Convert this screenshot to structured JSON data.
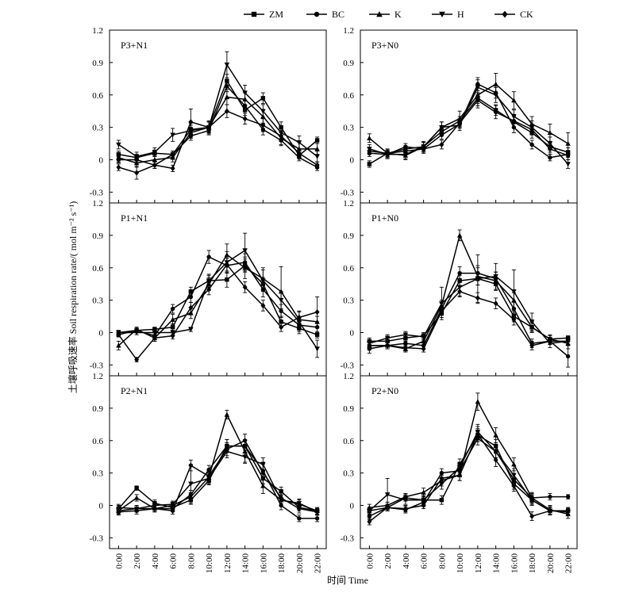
{
  "figure": {
    "ylabel": "土壤呼吸速率 Soil respiration rate/( mol m⁻² s⁻¹)",
    "xlabel": "时间 Time"
  },
  "chart_data": {
    "type": "line",
    "legend_position": "top",
    "legend": [
      {
        "name": "ZM",
        "marker": "square"
      },
      {
        "name": "BC",
        "marker": "circle"
      },
      {
        "name": "K",
        "marker": "triangle"
      },
      {
        "name": "H",
        "marker": "triangle-down"
      },
      {
        "name": "CK",
        "marker": "diamond"
      }
    ],
    "x": [
      "0:00",
      "2:00",
      "4:00",
      "6:00",
      "8:00",
      "10:00",
      "12:00",
      "14:00",
      "16:00",
      "18:00",
      "20:00",
      "22:00"
    ],
    "ylim": [
      -0.4,
      1.2
    ],
    "yticks": [
      "1.2",
      "0.9",
      "0.6",
      "0.3",
      "0",
      "-0.3"
    ],
    "yticks_values": [
      1.2,
      0.9,
      0.6,
      0.3,
      0,
      -0.3
    ],
    "color": "#000000",
    "panels": [
      {
        "label": "P3+N1",
        "series": [
          {
            "name": "ZM",
            "values": [
              0.05,
              0.02,
              0.06,
              0.05,
              0.28,
              0.3,
              0.73,
              0.46,
              0.57,
              0.3,
              0.04,
              0.18
            ],
            "err": [
              0.03,
              0.03,
              0.03,
              0.03,
              0.04,
              0.05,
              0.06,
              0.05,
              0.05,
              0.05,
              0.03,
              0.03
            ]
          },
          {
            "name": "BC",
            "values": [
              0.0,
              0.0,
              -0.05,
              0.05,
              0.22,
              0.27,
              0.68,
              0.5,
              0.28,
              0.18,
              0.02,
              -0.07
            ],
            "err": [
              0.03,
              0.03,
              0.03,
              0.03,
              0.04,
              0.04,
              0.05,
              0.05,
              0.05,
              0.05,
              0.03,
              0.03
            ]
          },
          {
            "name": "K",
            "values": [
              0.02,
              -0.03,
              0.0,
              0.02,
              0.25,
              0.3,
              0.58,
              0.56,
              0.4,
              0.2,
              0.1,
              0.1
            ],
            "err": [
              0.04,
              0.04,
              0.04,
              0.04,
              0.05,
              0.05,
              0.07,
              0.06,
              0.06,
              0.06,
              0.06,
              0.05
            ]
          },
          {
            "name": "H",
            "values": [
              0.14,
              0.03,
              0.07,
              0.23,
              0.27,
              0.3,
              0.88,
              0.62,
              0.45,
              0.25,
              0.16,
              0.03
            ],
            "err": [
              0.04,
              0.04,
              0.04,
              0.06,
              0.07,
              0.06,
              0.12,
              0.07,
              0.06,
              0.06,
              0.06,
              0.05
            ]
          },
          {
            "name": "CK",
            "values": [
              -0.07,
              -0.12,
              -0.05,
              -0.08,
              0.35,
              0.3,
              0.45,
              0.38,
              0.32,
              0.22,
              0.06,
              -0.05
            ],
            "err": [
              0.03,
              0.06,
              0.03,
              0.03,
              0.12,
              0.05,
              0.06,
              0.05,
              0.06,
              0.05,
              0.04,
              0.03
            ]
          }
        ]
      },
      {
        "label": "P3+N0",
        "series": [
          {
            "name": "ZM",
            "values": [
              -0.04,
              0.06,
              0.1,
              0.12,
              0.26,
              0.36,
              0.57,
              0.46,
              0.35,
              0.25,
              0.12,
              0.07
            ],
            "err": [
              0.03,
              0.03,
              0.03,
              0.04,
              0.04,
              0.04,
              0.05,
              0.05,
              0.05,
              0.05,
              0.05,
              0.04
            ]
          },
          {
            "name": "BC",
            "values": [
              0.06,
              0.05,
              0.12,
              0.1,
              0.23,
              0.33,
              0.7,
              0.62,
              0.3,
              0.14,
              0.02,
              0.05
            ],
            "err": [
              0.03,
              0.03,
              0.03,
              0.04,
              0.04,
              0.04,
              0.06,
              0.05,
              0.05,
              0.04,
              0.03,
              0.03
            ]
          },
          {
            "name": "K",
            "values": [
              0.2,
              0.06,
              0.04,
              0.12,
              0.3,
              0.38,
              0.6,
              0.7,
              0.55,
              0.33,
              0.25,
              0.15
            ],
            "err": [
              0.04,
              0.04,
              0.04,
              0.05,
              0.05,
              0.07,
              0.1,
              0.1,
              0.08,
              0.07,
              0.08,
              0.1
            ]
          },
          {
            "name": "H",
            "values": [
              0.1,
              0.05,
              0.05,
              0.12,
              0.3,
              0.32,
              0.67,
              0.6,
              0.4,
              0.3,
              0.15,
              -0.04
            ],
            "err": [
              0.04,
              0.04,
              0.04,
              0.04,
              0.05,
              0.05,
              0.07,
              0.07,
              0.06,
              0.06,
              0.06,
              0.04
            ]
          },
          {
            "name": "CK",
            "values": [
              0.08,
              0.06,
              0.08,
              0.1,
              0.14,
              0.34,
              0.55,
              0.44,
              0.36,
              0.28,
              0.1,
              0.04
            ],
            "err": [
              0.03,
              0.03,
              0.03,
              0.03,
              0.04,
              0.04,
              0.07,
              0.06,
              0.06,
              0.05,
              0.05,
              0.04
            ]
          }
        ]
      },
      {
        "label": "P1+N1",
        "series": [
          {
            "name": "ZM",
            "values": [
              -0.02,
              0.02,
              0.03,
              0.05,
              0.38,
              0.48,
              0.49,
              0.62,
              0.45,
              0.1,
              0.04,
              -0.02
            ],
            "err": [
              0.02,
              0.02,
              0.02,
              0.03,
              0.04,
              0.05,
              0.07,
              0.06,
              0.06,
              0.05,
              0.05,
              0.03
            ]
          },
          {
            "name": "BC",
            "values": [
              0.0,
              0.02,
              -0.03,
              0.22,
              0.33,
              0.7,
              0.62,
              0.65,
              0.4,
              0.2,
              0.07,
              0.05
            ],
            "err": [
              0.02,
              0.02,
              0.03,
              0.04,
              0.05,
              0.06,
              0.07,
              0.08,
              0.07,
              0.06,
              0.06,
              0.05
            ]
          },
          {
            "name": "K",
            "values": [
              -0.12,
              0.03,
              -0.05,
              0.12,
              0.18,
              0.45,
              0.72,
              0.6,
              0.5,
              0.38,
              0.12,
              0.1
            ],
            "err": [
              0.04,
              0.02,
              0.03,
              0.05,
              0.05,
              0.06,
              0.1,
              0.1,
              0.1,
              0.23,
              0.08,
              0.05
            ]
          },
          {
            "name": "H",
            "values": [
              0.0,
              0.0,
              0.0,
              0.0,
              0.03,
              0.48,
              0.65,
              0.76,
              0.48,
              0.3,
              0.1,
              -0.15
            ],
            "err": [
              0.02,
              0.02,
              0.02,
              0.02,
              0.02,
              0.06,
              0.1,
              0.16,
              0.1,
              0.08,
              0.05,
              0.08
            ]
          },
          {
            "name": "CK",
            "values": [
              -0.02,
              -0.25,
              -0.05,
              -0.03,
              0.23,
              0.4,
              0.63,
              0.42,
              0.25,
              0.05,
              0.14,
              0.19
            ],
            "err": [
              0.02,
              0.02,
              0.03,
              0.03,
              0.05,
              0.05,
              0.06,
              0.05,
              0.05,
              0.04,
              0.05,
              0.14
            ]
          }
        ]
      },
      {
        "label": "P1+N0",
        "series": [
          {
            "name": "ZM",
            "values": [
              -0.08,
              -0.08,
              -0.05,
              -0.03,
              0.18,
              0.48,
              0.5,
              0.45,
              0.15,
              0.05,
              -0.06,
              -0.05
            ],
            "err": [
              0.03,
              0.03,
              0.03,
              0.03,
              0.04,
              0.05,
              0.06,
              0.06,
              0.05,
              0.04,
              0.03,
              0.02
            ]
          },
          {
            "name": "BC",
            "values": [
              -0.15,
              -0.12,
              -0.1,
              -0.12,
              0.22,
              0.55,
              0.55,
              0.5,
              0.22,
              -0.1,
              -0.08,
              -0.22
            ],
            "err": [
              0.04,
              0.03,
              0.03,
              0.03,
              0.05,
              0.06,
              0.07,
              0.06,
              0.06,
              0.04,
              0.03,
              0.1
            ]
          },
          {
            "name": "K",
            "values": [
              -0.12,
              -0.12,
              -0.15,
              -0.08,
              0.25,
              0.9,
              0.52,
              0.48,
              0.3,
              0.05,
              -0.06,
              -0.1
            ],
            "err": [
              0.04,
              0.03,
              0.03,
              0.04,
              0.05,
              0.05,
              0.08,
              0.08,
              0.07,
              0.05,
              0.04,
              0.05
            ]
          },
          {
            "name": "H",
            "values": [
              -0.1,
              -0.05,
              -0.02,
              -0.04,
              0.27,
              0.42,
              0.5,
              0.52,
              0.38,
              0.1,
              -0.1,
              -0.08
            ],
            "err": [
              0.03,
              0.03,
              0.03,
              0.03,
              0.15,
              0.08,
              0.22,
              0.12,
              0.2,
              0.08,
              0.04,
              0.04
            ]
          },
          {
            "name": "CK",
            "values": [
              -0.12,
              -0.12,
              -0.14,
              -0.15,
              0.2,
              0.38,
              0.32,
              0.27,
              0.12,
              -0.12,
              -0.08,
              -0.08
            ],
            "err": [
              0.03,
              0.03,
              0.03,
              0.03,
              0.04,
              0.05,
              0.05,
              0.05,
              0.05,
              0.04,
              0.03,
              0.03
            ]
          }
        ]
      },
      {
        "label": "P2+N1",
        "series": [
          {
            "name": "ZM",
            "values": [
              -0.03,
              0.16,
              0.02,
              -0.02,
              0.05,
              0.23,
              0.55,
              0.55,
              0.25,
              0.13,
              -0.02,
              -0.05
            ],
            "err": [
              0.03,
              0.02,
              0.03,
              0.03,
              0.04,
              0.04,
              0.06,
              0.06,
              0.05,
              0.04,
              0.03,
              0.03
            ]
          },
          {
            "name": "BC",
            "values": [
              -0.06,
              -0.05,
              -0.03,
              -0.03,
              0.1,
              0.33,
              0.55,
              0.55,
              0.32,
              0.0,
              -0.12,
              -0.12
            ],
            "err": [
              0.03,
              0.03,
              0.03,
              0.03,
              0.04,
              0.04,
              0.06,
              0.06,
              0.06,
              0.04,
              0.03,
              0.03
            ]
          },
          {
            "name": "K",
            "values": [
              -0.05,
              0.07,
              -0.03,
              0.0,
              0.08,
              0.26,
              0.84,
              0.5,
              0.18,
              0.05,
              0.01,
              -0.05
            ],
            "err": [
              0.03,
              0.03,
              0.03,
              0.03,
              0.04,
              0.05,
              0.04,
              0.1,
              0.07,
              0.05,
              0.04,
              0.03
            ]
          },
          {
            "name": "H",
            "values": [
              -0.05,
              -0.03,
              0.0,
              0.01,
              0.2,
              0.25,
              0.5,
              0.45,
              0.38,
              0.05,
              0.02,
              -0.06
            ],
            "err": [
              0.03,
              0.03,
              0.03,
              0.03,
              0.18,
              0.05,
              0.06,
              0.06,
              0.06,
              0.05,
              0.04,
              0.03
            ]
          },
          {
            "name": "CK",
            "values": [
              -0.02,
              -0.03,
              -0.03,
              -0.05,
              0.37,
              0.27,
              0.52,
              0.6,
              0.3,
              0.07,
              -0.03,
              -0.06
            ],
            "err": [
              0.03,
              0.03,
              0.03,
              0.03,
              0.05,
              0.05,
              0.06,
              0.06,
              0.1,
              0.05,
              0.04,
              0.03
            ]
          }
        ]
      },
      {
        "label": "P2+N0",
        "series": [
          {
            "name": "ZM",
            "values": [
              -0.05,
              -0.02,
              0.07,
              0.05,
              0.05,
              0.38,
              0.65,
              0.55,
              0.2,
              0.05,
              -0.05,
              -0.05
            ],
            "err": [
              0.03,
              0.03,
              0.03,
              0.04,
              0.04,
              0.05,
              0.06,
              0.06,
              0.05,
              0.04,
              0.03,
              0.03
            ]
          },
          {
            "name": "BC",
            "values": [
              -0.1,
              -0.02,
              -0.04,
              0.03,
              0.3,
              0.32,
              0.62,
              0.5,
              0.24,
              0.07,
              0.08,
              0.08
            ],
            "err": [
              0.03,
              0.03,
              0.03,
              0.04,
              0.04,
              0.05,
              0.06,
              0.06,
              0.05,
              0.04,
              0.03,
              0.02
            ]
          },
          {
            "name": "K",
            "values": [
              -0.02,
              0.0,
              0.08,
              0.12,
              0.23,
              0.28,
              0.96,
              0.65,
              0.38,
              0.07,
              -0.04,
              -0.08
            ],
            "err": [
              0.03,
              0.03,
              0.03,
              0.04,
              0.05,
              0.05,
              0.08,
              0.07,
              0.06,
              0.05,
              0.04,
              0.04
            ]
          },
          {
            "name": "H",
            "values": [
              -0.05,
              0.1,
              0.05,
              0.05,
              0.2,
              0.35,
              0.68,
              0.5,
              0.28,
              0.05,
              -0.05,
              -0.06
            ],
            "err": [
              0.03,
              0.15,
              0.04,
              0.04,
              0.05,
              0.05,
              0.07,
              0.06,
              0.06,
              0.05,
              0.04,
              0.03
            ]
          },
          {
            "name": "CK",
            "values": [
              -0.15,
              -0.02,
              -0.03,
              0.0,
              0.25,
              0.28,
              0.66,
              0.42,
              0.18,
              -0.1,
              -0.05,
              -0.05
            ],
            "err": [
              0.03,
              0.03,
              0.03,
              0.03,
              0.05,
              0.05,
              0.07,
              0.06,
              0.05,
              0.04,
              0.03,
              0.03
            ]
          }
        ]
      }
    ]
  }
}
